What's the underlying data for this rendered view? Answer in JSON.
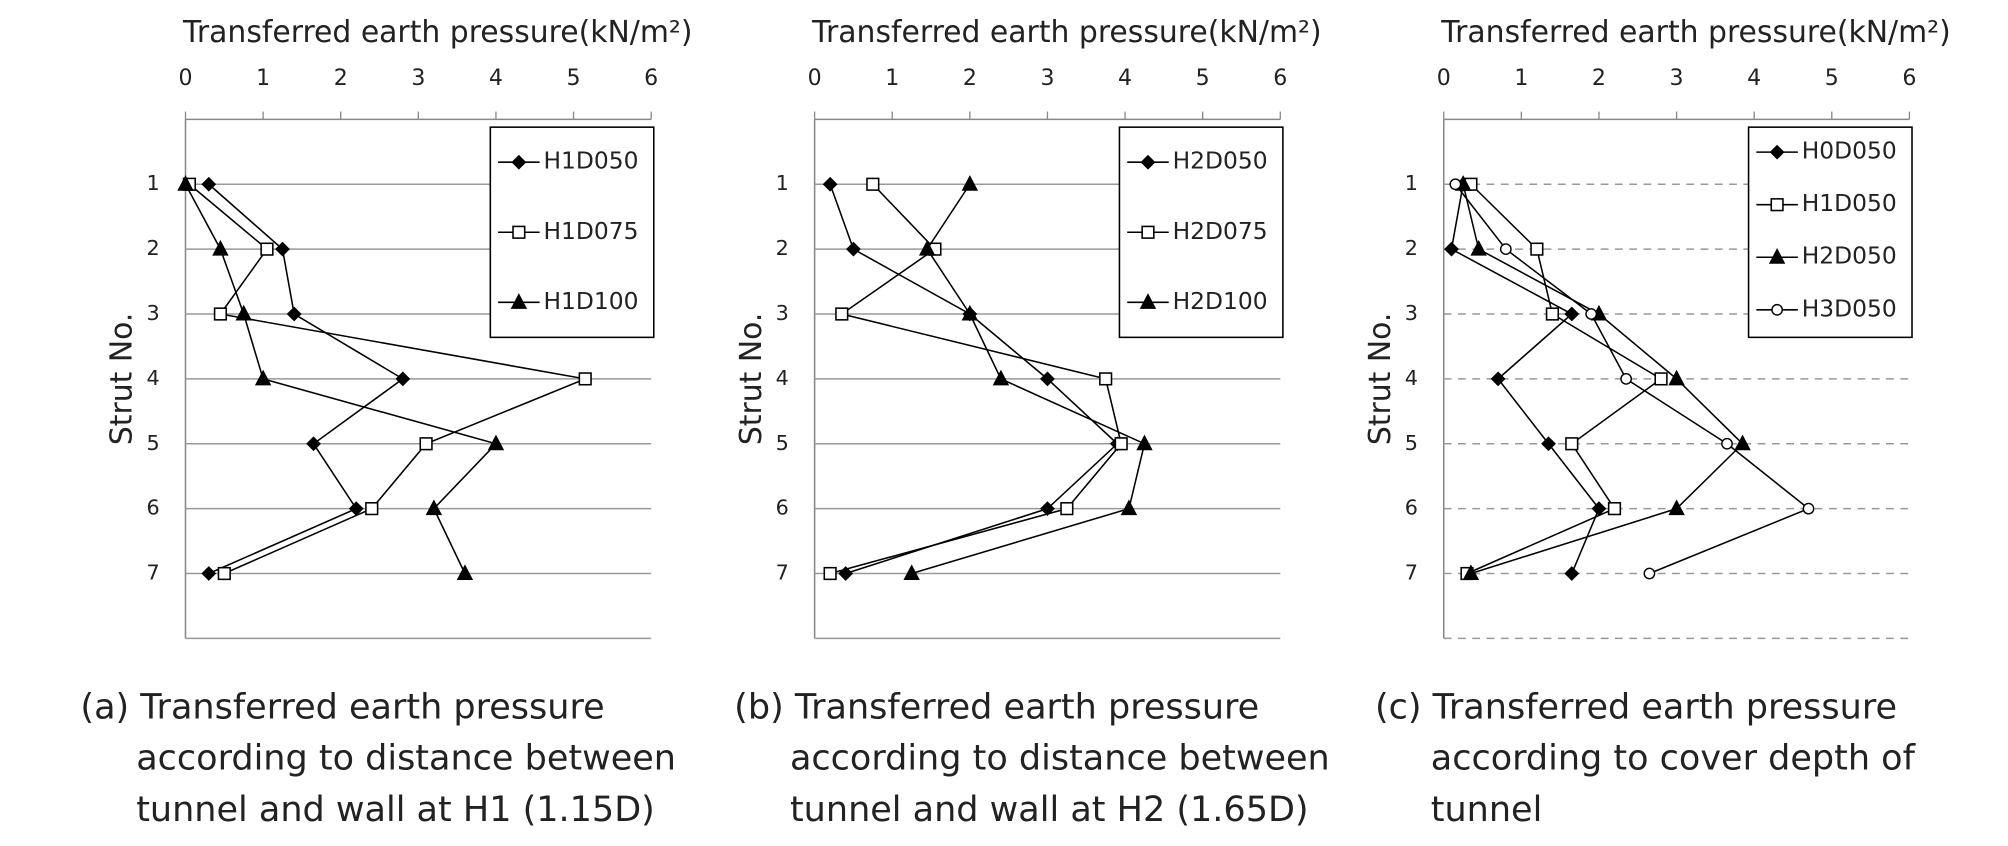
{
  "chart_data": [
    {
      "type": "line",
      "title": "Transferred earth pressure(kN/m²)",
      "y_label": "Strut No.",
      "categories": [
        "1",
        "2",
        "3",
        "4",
        "5",
        "6",
        "7"
      ],
      "xlim": [
        0,
        6
      ],
      "xticks": [
        0,
        1,
        2,
        3,
        4,
        5,
        6
      ],
      "grid": "solid",
      "legend": "upper right",
      "series": [
        {
          "name": "H1D050",
          "color": "#000000",
          "marker": "diamond",
          "values": [
            0.3,
            1.25,
            1.4,
            2.8,
            1.65,
            2.2,
            0.3
          ]
        },
        {
          "name": "H1D075",
          "color": "#000000",
          "marker": "square",
          "values": [
            0.05,
            1.05,
            0.45,
            5.15,
            3.1,
            2.4,
            0.5
          ]
        },
        {
          "name": "H1D100",
          "color": "#000000",
          "marker": "triangle",
          "values": [
            0,
            0.45,
            0.75,
            1.0,
            4.0,
            3.2,
            3.6
          ]
        }
      ],
      "caption": [
        "(a) Transferred earth pressure",
        "according to distance between",
        "tunnel and wall at H1 (1.15D)"
      ]
    },
    {
      "type": "line",
      "title": "Transferred earth pressure(kN/m²)",
      "y_label": "Strut No.",
      "categories": [
        "1",
        "2",
        "3",
        "4",
        "5",
        "6",
        "7"
      ],
      "xlim": [
        0,
        6
      ],
      "xticks": [
        0,
        1,
        2,
        3,
        4,
        5,
        6
      ],
      "grid": "solid",
      "legend": "upper right",
      "series": [
        {
          "name": "H2D050",
          "color": "#000000",
          "marker": "diamond",
          "values": [
            0.2,
            0.5,
            2.0,
            3.0,
            3.9,
            3.0,
            0.4
          ]
        },
        {
          "name": "H2D075",
          "color": "#000000",
          "marker": "square",
          "values": [
            0.75,
            1.55,
            0.35,
            3.75,
            3.95,
            3.25,
            0.2
          ]
        },
        {
          "name": "H2D100",
          "color": "#000000",
          "marker": "triangle",
          "values": [
            2.0,
            1.45,
            2.0,
            2.4,
            4.25,
            4.05,
            1.25
          ]
        }
      ],
      "caption": [
        "(b) Transferred earth pressure",
        "according to distance between",
        "tunnel and wall at H2 (1.65D)"
      ]
    },
    {
      "type": "line",
      "title": "Transferred earth pressure(kN/m²)",
      "y_label": "Strut No.",
      "categories": [
        "1",
        "2",
        "3",
        "4",
        "5",
        "6",
        "7"
      ],
      "xlim": [
        0,
        6
      ],
      "xticks": [
        0,
        1,
        2,
        3,
        4,
        5,
        6
      ],
      "grid": "dashed",
      "legend": "upper right",
      "series": [
        {
          "name": "H0D050",
          "color": "#000000",
          "marker": "diamond",
          "values": [
            0.25,
            0.1,
            1.65,
            0.7,
            1.35,
            2.0,
            1.65
          ]
        },
        {
          "name": "H1D050",
          "color": "#000000",
          "marker": "square",
          "values": [
            0.35,
            1.2,
            1.4,
            2.8,
            1.65,
            2.2,
            0.3
          ]
        },
        {
          "name": "H2D050",
          "color": "#000000",
          "marker": "triangle",
          "values": [
            0.25,
            0.45,
            2.0,
            3.0,
            3.85,
            3.0,
            0.35
          ]
        },
        {
          "name": "H3D050",
          "color": "#000000",
          "marker": "circle",
          "values": [
            0.15,
            0.8,
            1.9,
            2.35,
            3.65,
            4.7,
            2.65
          ]
        }
      ],
      "caption": [
        "(c) Transferred earth pressure",
        "according to cover depth of",
        "tunnel"
      ]
    }
  ]
}
